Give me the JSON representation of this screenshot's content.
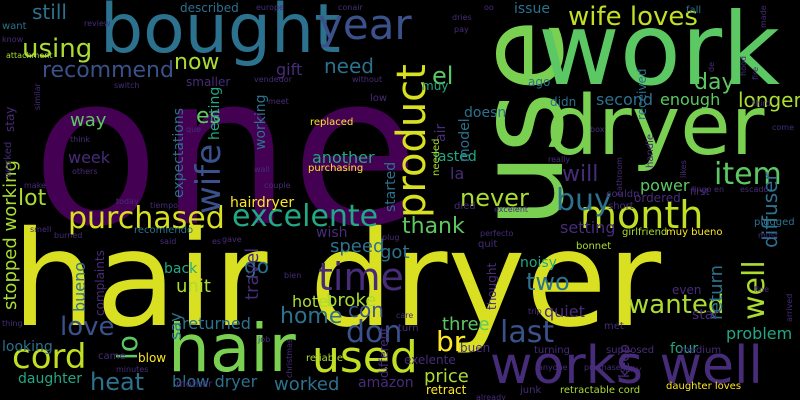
{
  "background": "#000000",
  "palette": [
    "#440154",
    "#472c7a",
    "#3b518b",
    "#2c718e",
    "#21908d",
    "#27ad81",
    "#5cc863",
    "#aadc32",
    "#fde725"
  ],
  "words": [
    {
      "text": "one",
      "color": "#440154",
      "orientation": "horizontal"
    },
    {
      "text": "hair dryer",
      "color": "#d9e021",
      "orientation": "horizontal"
    },
    {
      "text": "use",
      "color": "#7ad151",
      "orientation": "vertical"
    },
    {
      "text": "work",
      "color": "#5cc863",
      "orientation": "horizontal"
    },
    {
      "text": "bought",
      "color": "#2c718e",
      "orientation": "horizontal"
    },
    {
      "text": "dryer",
      "color": "#7ad151",
      "orientation": "horizontal"
    },
    {
      "text": "hair",
      "color": "#7ad151",
      "orientation": "horizontal"
    },
    {
      "text": "works well",
      "color": "#472c7a",
      "orientation": "horizontal"
    },
    {
      "text": "year",
      "color": "#3b518b",
      "orientation": "horizontal"
    },
    {
      "text": "product",
      "color": "#d9e021",
      "orientation": "vertical"
    },
    {
      "text": "excelente",
      "color": "#22a884",
      "orientation": "horizontal"
    },
    {
      "text": "month",
      "color": "#c2df23",
      "orientation": "horizontal"
    },
    {
      "text": "wife loves",
      "color": "#c2df23",
      "orientation": "horizontal"
    },
    {
      "text": "time",
      "color": "#472c7a",
      "orientation": "horizontal"
    },
    {
      "text": "used",
      "color": "#c2df23",
      "orientation": "horizontal"
    },
    {
      "text": "purchased",
      "color": "#d9e021",
      "orientation": "horizontal"
    },
    {
      "text": "cord",
      "color": "#c2df23",
      "orientation": "horizontal"
    },
    {
      "text": "recommend",
      "color": "#3b518b",
      "orientation": "horizontal"
    },
    {
      "text": "buy",
      "color": "#2c718e",
      "orientation": "horizontal"
    },
    {
      "text": "item",
      "color": "#5cc863",
      "orientation": "horizontal"
    },
    {
      "text": "wife",
      "color": "#3b518b",
      "orientation": "vertical"
    },
    {
      "text": "using",
      "color": "#aadc32",
      "orientation": "horizontal"
    },
    {
      "text": "last",
      "color": "#3b518b",
      "orientation": "horizontal"
    },
    {
      "text": "don",
      "color": "#3b518b",
      "orientation": "horizontal"
    },
    {
      "text": "love",
      "color": "#3b518b",
      "orientation": "horizontal"
    },
    {
      "text": "wanted",
      "color": "#aadc32",
      "orientation": "horizontal"
    },
    {
      "text": "well",
      "color": "#aadc32",
      "orientation": "vertical"
    },
    {
      "text": "heat",
      "color": "#2c718e",
      "orientation": "horizontal"
    },
    {
      "text": "now",
      "color": "#aadc32",
      "orientation": "horizontal"
    },
    {
      "text": "need",
      "color": "#2c718e",
      "orientation": "horizontal"
    },
    {
      "text": "still",
      "color": "#2c718e",
      "orientation": "horizontal"
    },
    {
      "text": "es",
      "color": "#5cc863",
      "orientation": "horizontal"
    },
    {
      "text": "el",
      "color": "#5cc863",
      "orientation": "horizontal"
    },
    {
      "text": "will",
      "color": "#472c7a",
      "orientation": "horizontal"
    },
    {
      "text": "never",
      "color": "#aadc32",
      "orientation": "horizontal"
    },
    {
      "text": "two",
      "color": "#2c718e",
      "orientation": "horizontal"
    },
    {
      "text": "day",
      "color": "#5cc863",
      "orientation": "horizontal"
    },
    {
      "text": "br",
      "color": "#fde725",
      "orientation": "horizontal"
    },
    {
      "text": "lo",
      "color": "#5cc863",
      "orientation": "vertical"
    },
    {
      "text": "home",
      "color": "#2c718e",
      "orientation": "horizontal"
    },
    {
      "text": "thank",
      "color": "#5cc863",
      "orientation": "horizontal"
    },
    {
      "text": "three",
      "color": "#5cc863",
      "orientation": "horizontal"
    },
    {
      "text": "longer",
      "color": "#aadc32",
      "orientation": "horizontal"
    },
    {
      "text": "go",
      "color": "#2c718e",
      "orientation": "horizontal"
    },
    {
      "text": "got",
      "color": "#2c718e",
      "orientation": "horizontal"
    },
    {
      "text": "lot",
      "color": "#aadc32",
      "orientation": "horizontal"
    },
    {
      "text": "way",
      "color": "#5cc863",
      "orientation": "horizontal"
    },
    {
      "text": "worked",
      "color": "#2c718e",
      "orientation": "horizontal"
    },
    {
      "text": "price",
      "color": "#aadc32",
      "orientation": "horizontal"
    },
    {
      "text": "gift",
      "color": "#472c7a",
      "orientation": "horizontal"
    },
    {
      "text": "speed",
      "color": "#2c718e",
      "orientation": "horizontal"
    },
    {
      "text": "blow dryer",
      "color": "#2c718e",
      "orientation": "horizontal"
    },
    {
      "text": "broke",
      "color": "#aadc32",
      "orientation": "horizontal"
    },
    {
      "text": "returned",
      "color": "#2c718e",
      "orientation": "horizontal"
    },
    {
      "text": "power",
      "color": "#5cc863",
      "orientation": "horizontal"
    },
    {
      "text": "second",
      "color": "#2c718e",
      "orientation": "horizontal"
    },
    {
      "text": "enough",
      "color": "#5cc863",
      "orientation": "horizontal"
    },
    {
      "text": "stopped working",
      "color": "#aadc32",
      "orientation": "vertical"
    },
    {
      "text": "diffuser",
      "color": "#2c718e",
      "orientation": "vertical"
    },
    {
      "text": "travel",
      "color": "#472c7a",
      "orientation": "vertical"
    },
    {
      "text": "hotel",
      "color": "#aadc32",
      "orientation": "horizontal"
    },
    {
      "text": "quiet",
      "color": "#472c7a",
      "orientation": "horizontal"
    },
    {
      "text": "setting",
      "color": "#472c7a",
      "orientation": "horizontal"
    },
    {
      "text": "hairdryer",
      "color": "#fde725",
      "orientation": "horizontal"
    },
    {
      "text": "another",
      "color": "#22a884",
      "orientation": "horizontal"
    },
    {
      "text": "working",
      "color": "#2c718e",
      "orientation": "vertical"
    },
    {
      "text": "expectations",
      "color": "#2c718e",
      "orientation": "vertical"
    },
    {
      "text": "heating",
      "color": "#22a884",
      "orientation": "vertical"
    },
    {
      "text": "unit",
      "color": "#aadc32",
      "orientation": "horizontal"
    },
    {
      "text": "problem",
      "color": "#22a884",
      "orientation": "horizontal"
    },
    {
      "text": "return",
      "color": "#2c718e",
      "orientation": "vertical"
    },
    {
      "text": "con",
      "color": "#3b518b",
      "orientation": "horizontal"
    },
    {
      "text": "wish",
      "color": "#472c7a",
      "orientation": "horizontal"
    },
    {
      "text": "started",
      "color": "#2c718e",
      "orientation": "vertical"
    },
    {
      "text": "doesn",
      "color": "#2c718e",
      "orientation": "horizontal"
    },
    {
      "text": "la",
      "color": "#472c7a",
      "orientation": "horizontal"
    },
    {
      "text": "week",
      "color": "#472c7a",
      "orientation": "horizontal"
    },
    {
      "text": "bueno",
      "color": "#2c718e",
      "orientation": "vertical"
    },
    {
      "text": "say",
      "color": "#2c718e",
      "orientation": "vertical"
    },
    {
      "text": "looking",
      "color": "#2c718e",
      "orientation": "horizontal"
    },
    {
      "text": "daughter",
      "color": "#22a884",
      "orientation": "horizontal"
    },
    {
      "text": "amazon",
      "color": "#472c7a",
      "orientation": "horizontal"
    },
    {
      "text": "keep",
      "color": "#472c7a",
      "orientation": "vertical"
    },
    {
      "text": "lasted",
      "color": "#22a884",
      "orientation": "horizontal"
    },
    {
      "text": "back",
      "color": "#22a884",
      "orientation": "horizontal"
    },
    {
      "text": "received",
      "color": "#2c718e",
      "orientation": "vertical"
    },
    {
      "text": "model",
      "color": "#2c718e",
      "orientation": "vertical"
    },
    {
      "text": "air",
      "color": "#472c7a",
      "orientation": "vertical"
    },
    {
      "text": "issue",
      "color": "#2c718e",
      "orientation": "horizontal"
    },
    {
      "text": "noisy",
      "color": "#22a884",
      "orientation": "horizontal"
    },
    {
      "text": "four",
      "color": "#22a884",
      "orientation": "horizontal"
    },
    {
      "text": "star",
      "color": "#472c7a",
      "orientation": "horizontal"
    },
    {
      "text": "even",
      "color": "#472c7a",
      "orientation": "horizontal"
    },
    {
      "text": "buen",
      "color": "#472c7a",
      "orientation": "horizontal"
    },
    {
      "text": "complaints",
      "color": "#472c7a",
      "orientation": "vertical"
    },
    {
      "text": "thought",
      "color": "#472c7a",
      "orientation": "vertical"
    },
    {
      "text": "different",
      "color": "#472c7a",
      "orientation": "vertical"
    },
    {
      "text": "retract",
      "color": "#fde725",
      "orientation": "horizontal"
    },
    {
      "text": "exelente",
      "color": "#472c7a",
      "orientation": "horizontal"
    },
    {
      "text": "described",
      "color": "#2c718e",
      "orientation": "horizontal"
    },
    {
      "text": "fall",
      "color": "#2c718e",
      "orientation": "horizontal"
    },
    {
      "text": "blow",
      "color": "#fde725",
      "orientation": "horizontal"
    },
    {
      "text": "muy bueno",
      "color": "#fde725",
      "orientation": "horizontal"
    },
    {
      "text": "daughter loves",
      "color": "#fde725",
      "orientation": "horizontal"
    },
    {
      "text": "girlfriend",
      "color": "#aadc32",
      "orientation": "horizontal"
    },
    {
      "text": "retractable cord",
      "color": "#aadc32",
      "orientation": "horizontal"
    },
    {
      "text": "smaller",
      "color": "#472c7a",
      "orientation": "horizontal"
    },
    {
      "text": "recomiendo",
      "color": "#2c718e",
      "orientation": "horizontal"
    },
    {
      "text": "muy",
      "color": "#22a884",
      "orientation": "horizontal"
    },
    {
      "text": "didn",
      "color": "#2c718e",
      "orientation": "horizontal"
    },
    {
      "text": "ago",
      "color": "#2c718e",
      "orientation": "horizontal"
    },
    {
      "text": "ordered",
      "color": "#472c7a",
      "orientation": "horizontal"
    },
    {
      "text": "handle",
      "color": "#472c7a",
      "orientation": "vertical"
    },
    {
      "text": "needed",
      "color": "#aadc32",
      "orientation": "vertical"
    },
    {
      "text": "replaced",
      "color": "#fde725",
      "orientation": "horizontal"
    },
    {
      "text": "purchasing",
      "color": "#fde725",
      "orientation": "horizontal"
    },
    {
      "text": "died",
      "color": "#472c7a",
      "orientation": "horizontal"
    },
    {
      "text": "short",
      "color": "#472c7a",
      "orientation": "horizontal"
    },
    {
      "text": "plugged",
      "color": "#2c718e",
      "orientation": "horizontal"
    },
    {
      "text": "quit",
      "color": "#472c7a",
      "orientation": "horizontal"
    },
    {
      "text": "bonnet",
      "color": "#aadc32",
      "orientation": "horizontal"
    },
    {
      "text": "junk",
      "color": "#472c7a",
      "orientation": "horizontal"
    },
    {
      "text": "turn",
      "color": "#472c7a",
      "orientation": "horizontal"
    },
    {
      "text": "turning",
      "color": "#472c7a",
      "orientation": "horizontal"
    },
    {
      "text": "supposed",
      "color": "#472c7a",
      "orientation": "horizontal"
    },
    {
      "text": "met",
      "color": "#472c7a",
      "orientation": "horizontal"
    },
    {
      "text": "medium",
      "color": "#472c7a",
      "orientation": "horizontal"
    },
    {
      "text": "couldn",
      "color": "#472c7a",
      "orientation": "horizontal"
    },
    {
      "text": "first",
      "color": "#472c7a",
      "orientation": "horizontal"
    },
    {
      "text": "mother",
      "color": "#472c7a",
      "orientation": "horizontal"
    },
    {
      "text": "reliable",
      "color": "#aadc32",
      "orientation": "horizontal"
    },
    {
      "text": "came",
      "color": "#472c7a",
      "orientation": "horizontal"
    },
    {
      "text": "want",
      "color": "#2c718e",
      "orientation": "horizontal"
    },
    {
      "text": "know",
      "color": "#472c7a",
      "orientation": "horizontal"
    },
    {
      "text": "attachment",
      "color": "#aadc32",
      "orientation": "horizontal"
    },
    {
      "text": "review",
      "color": "#472c7a",
      "orientation": "horizontal"
    },
    {
      "text": "europe",
      "color": "#472c7a",
      "orientation": "horizontal"
    },
    {
      "text": "conair",
      "color": "#472c7a",
      "orientation": "horizontal"
    },
    {
      "text": "dries",
      "color": "#472c7a",
      "orientation": "horizontal"
    },
    {
      "text": "pay",
      "color": "#472c7a",
      "orientation": "horizontal"
    },
    {
      "text": "switch",
      "color": "#472c7a",
      "orientation": "horizontal"
    },
    {
      "text": "vendedor",
      "color": "#472c7a",
      "orientation": "horizontal"
    },
    {
      "text": "without",
      "color": "#472c7a",
      "orientation": "horizontal"
    },
    {
      "text": "low",
      "color": "#472c7a",
      "orientation": "horizontal"
    },
    {
      "text": "meet",
      "color": "#472c7a",
      "orientation": "horizontal"
    },
    {
      "text": "bathroom",
      "color": "#472c7a",
      "orientation": "vertical"
    },
    {
      "text": "box",
      "color": "#472c7a",
      "orientation": "horizontal"
    },
    {
      "text": "come",
      "color": "#472c7a",
      "orientation": "horizontal"
    },
    {
      "text": "third",
      "color": "#472c7a",
      "orientation": "horizontal"
    },
    {
      "text": "fire",
      "color": "#472c7a",
      "orientation": "vertical"
    },
    {
      "text": "hood",
      "color": "#472c7a",
      "orientation": "vertical"
    },
    {
      "text": "made",
      "color": "#472c7a",
      "orientation": "vertical"
    },
    {
      "text": "stay",
      "color": "#472c7a",
      "orientation": "vertical"
    },
    {
      "text": "worked",
      "color": "#472c7a",
      "orientation": "vertical"
    },
    {
      "text": "think",
      "color": "#472c7a",
      "orientation": "horizontal"
    },
    {
      "text": "others",
      "color": "#472c7a",
      "orientation": "horizontal"
    },
    {
      "text": "make",
      "color": "#472c7a",
      "orientation": "horizontal"
    },
    {
      "text": "que",
      "color": "#472c7a",
      "orientation": "horizontal"
    },
    {
      "text": "really",
      "color": "#472c7a",
      "orientation": "horizontal"
    },
    {
      "text": "couple",
      "color": "#472c7a",
      "orientation": "horizontal"
    },
    {
      "text": "tiempo",
      "color": "#472c7a",
      "orientation": "horizontal"
    },
    {
      "text": "today",
      "color": "#472c7a",
      "orientation": "horizontal"
    },
    {
      "text": "wall",
      "color": "#472c7a",
      "orientation": "horizontal"
    },
    {
      "text": "gave",
      "color": "#472c7a",
      "orientation": "horizontal"
    },
    {
      "text": "bien",
      "color": "#472c7a",
      "orientation": "horizontal"
    },
    {
      "text": "said",
      "color": "#472c7a",
      "orientation": "horizontal"
    },
    {
      "text": "smell",
      "color": "#472c7a",
      "orientation": "horizontal"
    },
    {
      "text": "burned",
      "color": "#472c7a",
      "orientation": "horizontal"
    },
    {
      "text": "thing",
      "color": "#472c7a",
      "orientation": "horizontal"
    },
    {
      "text": "job",
      "color": "#472c7a",
      "orientation": "horizontal"
    },
    {
      "text": "christmas",
      "color": "#472c7a",
      "orientation": "vertical"
    },
    {
      "text": "bulky",
      "color": "#472c7a",
      "orientation": "horizontal"
    },
    {
      "text": "already",
      "color": "#472c7a",
      "orientation": "horizontal"
    },
    {
      "text": "care",
      "color": "#472c7a",
      "orientation": "horizontal"
    },
    {
      "text": "minutes",
      "color": "#472c7a",
      "orientation": "horizontal"
    },
    {
      "text": "likes",
      "color": "#472c7a",
      "orientation": "vertical"
    },
    {
      "text": "fine",
      "color": "#472c7a",
      "orientation": "horizontal"
    },
    {
      "text": "arrived",
      "color": "#472c7a",
      "orientation": "vertical"
    },
    {
      "text": "must",
      "color": "#472c7a",
      "orientation": "horizontal"
    },
    {
      "text": "de",
      "color": "#472c7a",
      "orientation": "vertical"
    },
    {
      "text": "oo",
      "color": "#472c7a",
      "orientation": "horizontal"
    },
    {
      "text": "es",
      "color": "#472c7a",
      "orientation": "horizontal"
    },
    {
      "text": "similar",
      "color": "#472c7a",
      "orientation": "vertical"
    },
    {
      "text": "plug",
      "color": "#472c7a",
      "orientation": "horizontal"
    },
    {
      "text": "escado",
      "color": "#472c7a",
      "orientation": "horizontal"
    },
    {
      "text": "excelent",
      "color": "#472c7a",
      "orientation": "horizontal"
    },
    {
      "text": "trip",
      "color": "#472c7a",
      "orientation": "horizontal"
    },
    {
      "text": "perfecto",
      "color": "#472c7a",
      "orientation": "horizontal"
    },
    {
      "text": "anyone",
      "color": "#472c7a",
      "orientation": "horizontal"
    },
    {
      "text": "purchase",
      "color": "#472c7a",
      "orientation": "horizontal"
    },
    {
      "text": "lingo en",
      "color": "#472c7a",
      "orientation": "horizontal"
    }
  ]
}
